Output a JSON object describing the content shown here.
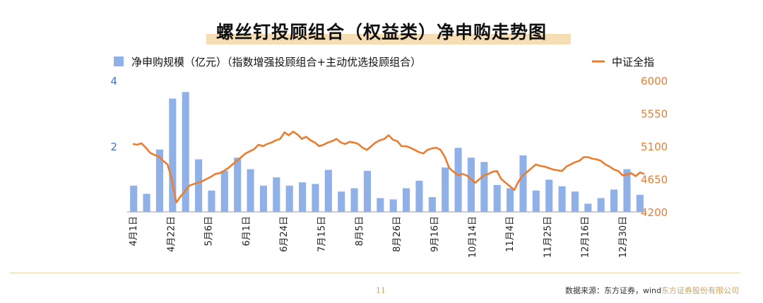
{
  "title": "螺丝钉投顾组合（权益类）净申购走势图",
  "page_number": "11",
  "source": {
    "label": "数据来源：东方证券，wind",
    "brand": "东方证券股份有限公司"
  },
  "colors": {
    "bar": "#8fb1e8",
    "line": "#ea7d2f",
    "left_axis": "#4472c4",
    "right_axis": "#ea7d2f",
    "title_highlight": "#f6ddb4"
  },
  "chart_data": {
    "type": "bar+line",
    "x_tick_labels": [
      "4月1日",
      "4月22日",
      "5月6日",
      "6月1日",
      "6月24日",
      "7月15日",
      "8月5日",
      "8月26日",
      "9月16日",
      "10月14日",
      "11月4日",
      "11月25日",
      "12月16日",
      "12月30日"
    ],
    "series": [
      {
        "name": "净申购规模（亿元）（指数增强投顾组合+主动优选投顾组合）",
        "type": "bar",
        "axis": "left",
        "values": [
          0.8,
          0.55,
          1.9,
          3.45,
          3.65,
          1.6,
          0.65,
          1.25,
          1.65,
          1.3,
          0.8,
          1.05,
          0.8,
          0.9,
          0.85,
          1.28,
          0.62,
          0.72,
          1.25,
          0.42,
          0.38,
          0.72,
          0.95,
          0.45,
          1.35,
          1.95,
          1.65,
          1.52,
          0.82,
          0.72,
          1.72,
          0.65,
          0.98,
          0.78,
          0.62,
          0.25,
          0.42,
          0.68,
          1.3,
          0.52
        ]
      },
      {
        "name": "中证全指",
        "type": "line",
        "axis": "right",
        "values": [
          5130,
          5120,
          5140,
          5080,
          5010,
          4980,
          4960,
          4900,
          4850,
          4650,
          4330,
          4410,
          4480,
          4560,
          4580,
          4600,
          4620,
          4650,
          4680,
          4720,
          4730,
          4760,
          4800,
          4850,
          4900,
          4950,
          5000,
          5030,
          5060,
          5120,
          5100,
          5130,
          5150,
          5180,
          5200,
          5290,
          5250,
          5300,
          5260,
          5200,
          5230,
          5180,
          5150,
          5100,
          5120,
          5150,
          5170,
          5200,
          5150,
          5130,
          5160,
          5150,
          5130,
          5080,
          5050,
          5100,
          5150,
          5180,
          5200,
          5250,
          5190,
          5170,
          5100,
          5100,
          5080,
          5050,
          5020,
          5000,
          5050,
          5070,
          5080,
          5050,
          4950,
          4800,
          4750,
          4700,
          4720,
          4700,
          4650,
          4600,
          4650,
          4700,
          4720,
          4750,
          4760,
          4650,
          4600,
          4550,
          4500,
          4620,
          4700,
          4750,
          4800,
          4850,
          4830,
          4820,
          4800,
          4780,
          4770,
          4760,
          4820,
          4850,
          4880,
          4900,
          4950,
          4950,
          4930,
          4920,
          4900,
          4850,
          4820,
          4780,
          4760,
          4700,
          4710,
          4730,
          4690,
          4740,
          4720
        ]
      }
    ],
    "y_left": {
      "ticks": [
        "2",
        "4"
      ],
      "ylim": [
        0,
        4
      ]
    },
    "y_right": {
      "ticks": [
        "4200",
        "4650",
        "5100",
        "5550",
        "6000"
      ],
      "ylim": [
        4200,
        6000
      ]
    },
    "legend": {
      "position": "top",
      "bar_label": "净申购规模（亿元）（指数增强投顾组合+主动优选投顾组合）",
      "line_label": "中证全指"
    },
    "grid": false
  }
}
